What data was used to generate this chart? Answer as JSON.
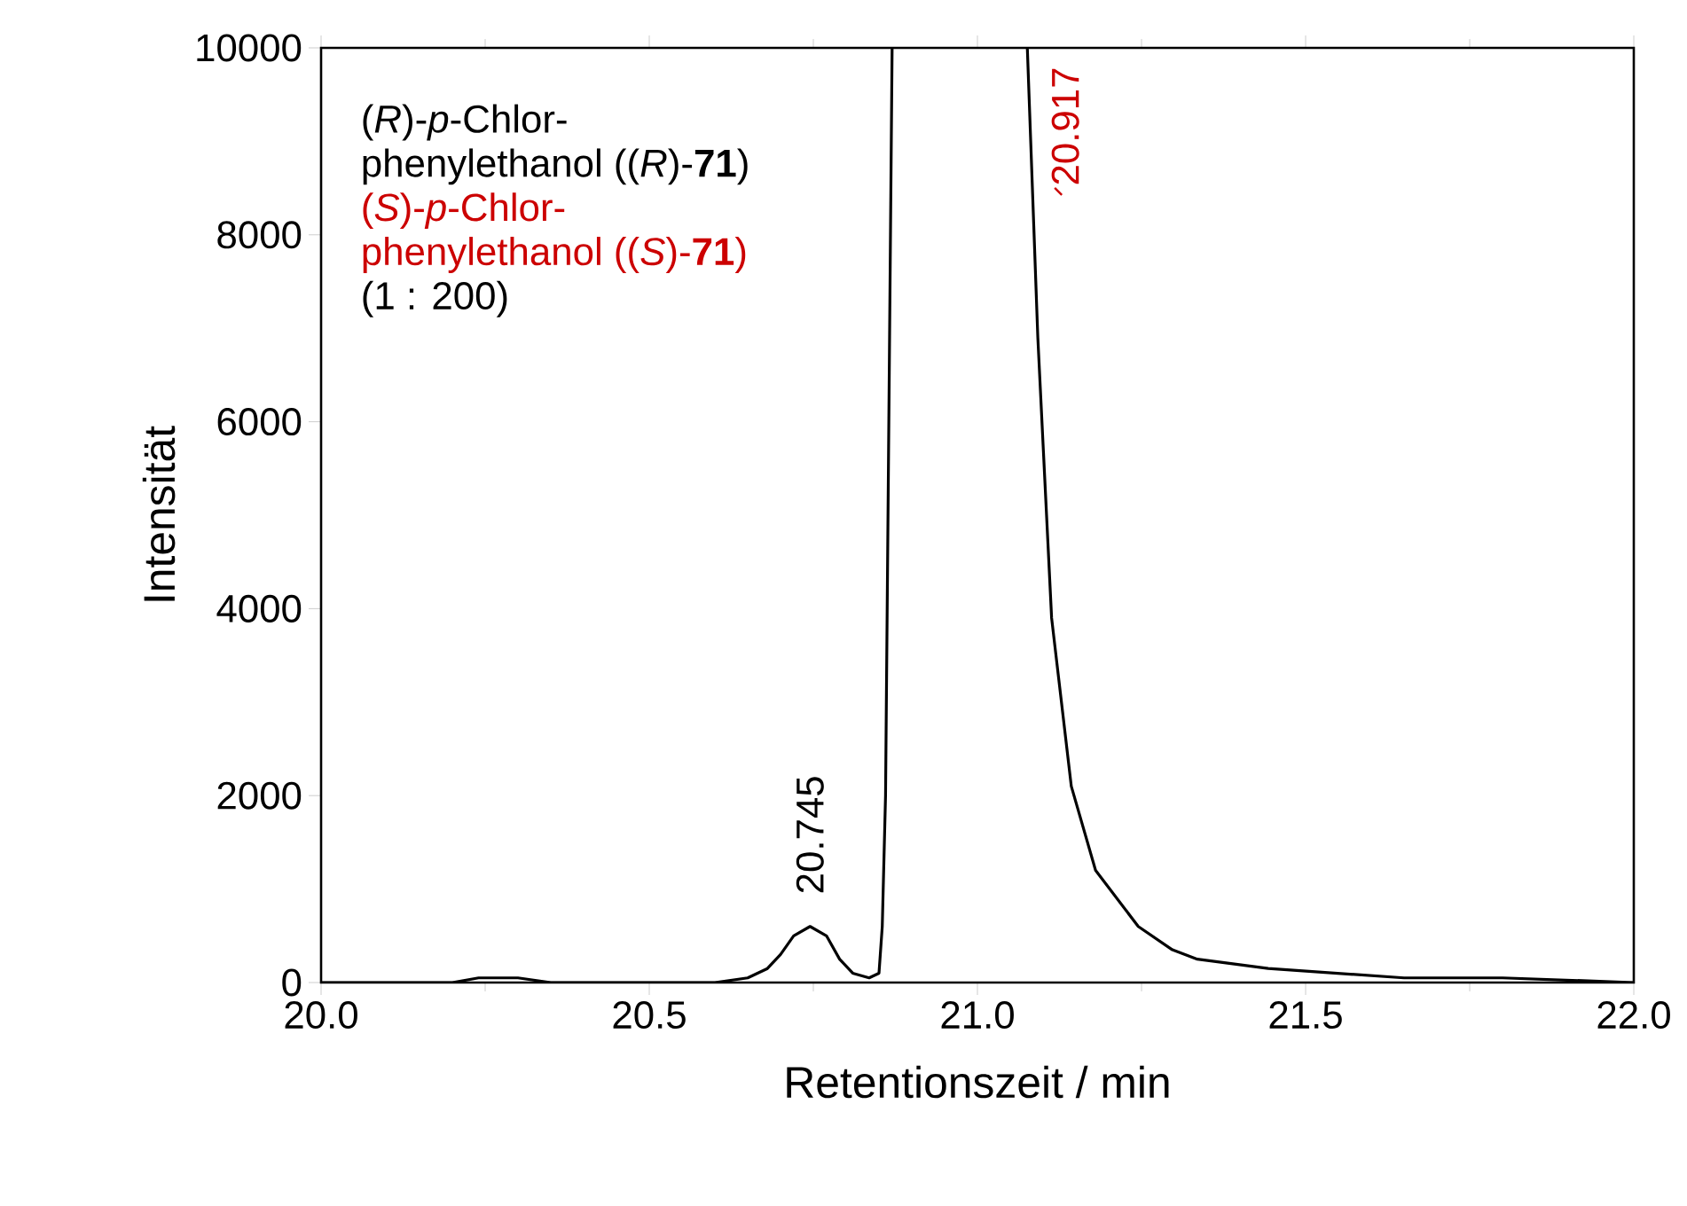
{
  "chart_data": {
    "type": "line",
    "xlabel": "Retentionszeit / min",
    "ylabel": "Intensität",
    "xlim": [
      20.0,
      22.0
    ],
    "ylim": [
      0,
      10000
    ],
    "xticks": [
      {
        "value": 20.0,
        "label": "20.0"
      },
      20.5,
      {
        "value": 21.0,
        "label": "21.0"
      },
      21.5,
      {
        "value": 22.0,
        "label": "22.0"
      }
    ],
    "yticks": [
      0,
      2000,
      4000,
      6000,
      8000,
      10000
    ],
    "grid": false,
    "marker": "none",
    "line_style": "solid",
    "series": [
      {
        "color": "#000000",
        "x": [
          20.0,
          20.1,
          20.2,
          20.24,
          20.27,
          20.3,
          20.35,
          20.5,
          20.6,
          20.65,
          20.68,
          20.7,
          20.72,
          20.745,
          20.77,
          20.79,
          20.81,
          20.835,
          20.85,
          20.855,
          20.86,
          20.865,
          20.87,
          20.97,
          21.076,
          21.092,
          21.113,
          21.143,
          21.18,
          21.245,
          21.297,
          21.335,
          21.443,
          21.65,
          21.8,
          22.0
        ],
        "values": [
          0,
          0,
          0,
          50,
          50,
          50,
          0,
          0,
          0,
          50,
          150,
          300,
          500,
          600,
          500,
          250,
          100,
          50,
          100,
          600,
          2000,
          6000,
          10000,
          null,
          10000,
          6900,
          3900,
          2100,
          1200,
          600,
          350,
          250,
          150,
          50,
          50,
          0
        ]
      }
    ],
    "annotations": [
      "(*R*)-*p*-Chlor-",
      "phenylethanol ((*R*)-**71**)",
      "(*S*)-*p*-Chlor-",
      "phenylethanol ((*S*)-**71**)",
      "(1 : 200)",
      {
        "text": "20.745",
        "x": 20.745,
        "y": 600
      },
      "20.917"
    ]
  }
}
